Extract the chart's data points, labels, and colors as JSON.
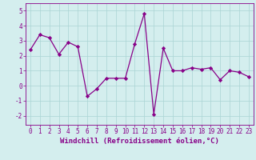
{
  "x": [
    0,
    1,
    2,
    3,
    4,
    5,
    6,
    7,
    8,
    9,
    10,
    11,
    12,
    13,
    14,
    15,
    16,
    17,
    18,
    19,
    20,
    21,
    22,
    23
  ],
  "y": [
    2.4,
    3.4,
    3.2,
    2.1,
    2.9,
    2.6,
    -0.7,
    -0.2,
    0.5,
    0.5,
    0.5,
    2.8,
    4.8,
    -1.9,
    2.5,
    1.0,
    1.0,
    1.2,
    1.1,
    1.2,
    0.4,
    1.0,
    0.9,
    0.6
  ],
  "line_color": "#880088",
  "marker": "D",
  "marker_size": 2.2,
  "line_width": 0.9,
  "bg_color": "#d4eeee",
  "grid_color": "#aad4d4",
  "xlabel": "Windchill (Refroidissement éolien,°C)",
  "xlabel_fontsize": 6.5,
  "xtick_labels": [
    "0",
    "1",
    "2",
    "3",
    "4",
    "5",
    "6",
    "7",
    "8",
    "9",
    "10",
    "11",
    "12",
    "13",
    "14",
    "15",
    "16",
    "17",
    "18",
    "19",
    "20",
    "21",
    "22",
    "23"
  ],
  "ytick_values": [
    -2,
    -1,
    0,
    1,
    2,
    3,
    4,
    5
  ],
  "xlim": [
    -0.5,
    23.5
  ],
  "ylim": [
    -2.6,
    5.5
  ],
  "tick_fontsize": 5.5,
  "tick_color": "#880088",
  "label_color": "#880088",
  "spine_color": "#880088"
}
